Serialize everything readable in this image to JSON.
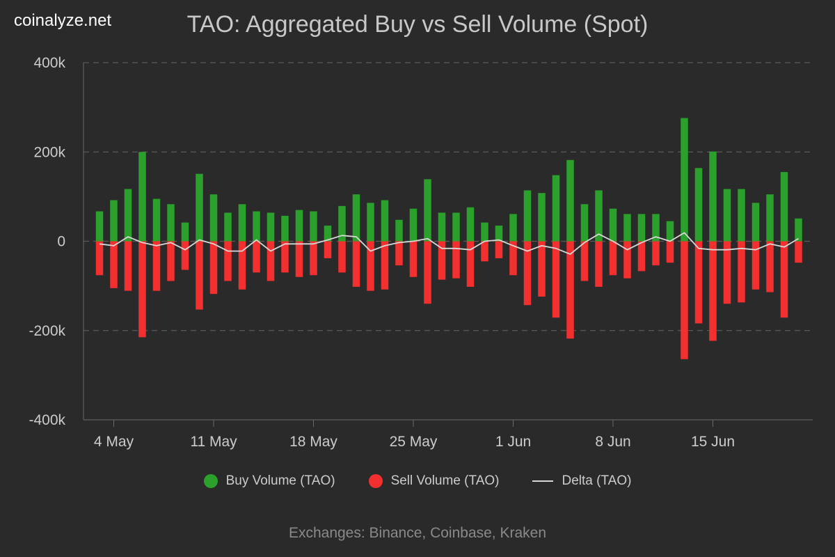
{
  "brand": "coinalyze.net",
  "chart_data": {
    "type": "bar",
    "title": "TAO: Aggregated Buy vs Sell Volume (Spot)",
    "footer": "Exchanges: Binance, Coinbase, Kraken",
    "ylim": [
      -400000,
      400000
    ],
    "y_ticks": [
      {
        "value": 400000,
        "label": "400k"
      },
      {
        "value": 200000,
        "label": "200k"
      },
      {
        "value": 0,
        "label": "0"
      },
      {
        "value": -200000,
        "label": "-200k"
      },
      {
        "value": -400000,
        "label": "-400k"
      }
    ],
    "x_ticks": [
      {
        "date": "2024-05-04",
        "label": "4 May"
      },
      {
        "date": "2024-05-11",
        "label": "11 May"
      },
      {
        "date": "2024-05-18",
        "label": "18 May"
      },
      {
        "date": "2024-05-25",
        "label": "25 May"
      },
      {
        "date": "2024-06-01",
        "label": "1 Jun"
      },
      {
        "date": "2024-06-08",
        "label": "8 Jun"
      },
      {
        "date": "2024-06-15",
        "label": "15 Jun"
      }
    ],
    "grid": true,
    "legend_position": "bottom",
    "dates": [
      "2024-05-03",
      "2024-05-04",
      "2024-05-05",
      "2024-05-06",
      "2024-05-07",
      "2024-05-08",
      "2024-05-09",
      "2024-05-10",
      "2024-05-11",
      "2024-05-12",
      "2024-05-13",
      "2024-05-14",
      "2024-05-15",
      "2024-05-16",
      "2024-05-17",
      "2024-05-18",
      "2024-05-19",
      "2024-05-20",
      "2024-05-21",
      "2024-05-22",
      "2024-05-23",
      "2024-05-24",
      "2024-05-25",
      "2024-05-26",
      "2024-05-27",
      "2024-05-28",
      "2024-05-29",
      "2024-05-30",
      "2024-05-31",
      "2024-06-01",
      "2024-06-02",
      "2024-06-03",
      "2024-06-04",
      "2024-06-05",
      "2024-06-06",
      "2024-06-07",
      "2024-06-08",
      "2024-06-09",
      "2024-06-10",
      "2024-06-11",
      "2024-06-12",
      "2024-06-13",
      "2024-06-14",
      "2024-06-15",
      "2024-06-16",
      "2024-06-17",
      "2024-06-18",
      "2024-06-19",
      "2024-06-20",
      "2024-06-21"
    ],
    "series": [
      {
        "name": "Buy Volume (TAO)",
        "color": "#2ca02c",
        "values": [
          67000,
          92000,
          117000,
          200000,
          95000,
          83000,
          42000,
          151000,
          105000,
          64000,
          83000,
          67000,
          64000,
          57000,
          70000,
          67000,
          35000,
          79000,
          105000,
          86000,
          92000,
          48000,
          73000,
          139000,
          64000,
          64000,
          76000,
          42000,
          35000,
          61000,
          114000,
          108000,
          148000,
          182000,
          83000,
          114000,
          73000,
          61000,
          61000,
          61000,
          45000,
          276000,
          164000,
          201000,
          117000,
          117000,
          86000,
          105000,
          155000,
          51000
        ]
      },
      {
        "name": "Sell Volume (TAO)",
        "color": "#f23030",
        "values": [
          -76000,
          -105000,
          -111000,
          -215000,
          -111000,
          -89000,
          -64000,
          -153000,
          -118000,
          -89000,
          -108000,
          -70000,
          -89000,
          -70000,
          -80000,
          -76000,
          -38000,
          -70000,
          -102000,
          -111000,
          -108000,
          -54000,
          -80000,
          -140000,
          -86000,
          -83000,
          -102000,
          -45000,
          -38000,
          -76000,
          -143000,
          -124000,
          -171000,
          -218000,
          -89000,
          -102000,
          -76000,
          -83000,
          -67000,
          -54000,
          -48000,
          -264000,
          -184000,
          -223000,
          -140000,
          -137000,
          -108000,
          -114000,
          -171000,
          -48000
        ]
      },
      {
        "name": "Delta (TAO)",
        "color": "#d8d8d8",
        "values": [
          -6000,
          -10000,
          10000,
          -3000,
          -10000,
          -3000,
          -19000,
          3000,
          -6000,
          -22000,
          -22000,
          3000,
          -22000,
          -6000,
          -6000,
          -6000,
          3000,
          13000,
          10000,
          -22000,
          -10000,
          -3000,
          0,
          6000,
          -16000,
          -16000,
          -19000,
          0,
          3000,
          -10000,
          -22000,
          -10000,
          -16000,
          -29000,
          -3000,
          16000,
          0,
          -19000,
          -3000,
          10000,
          0,
          19000,
          -16000,
          -19000,
          -19000,
          -16000,
          -19000,
          -6000,
          -13000,
          6000
        ]
      }
    ]
  }
}
